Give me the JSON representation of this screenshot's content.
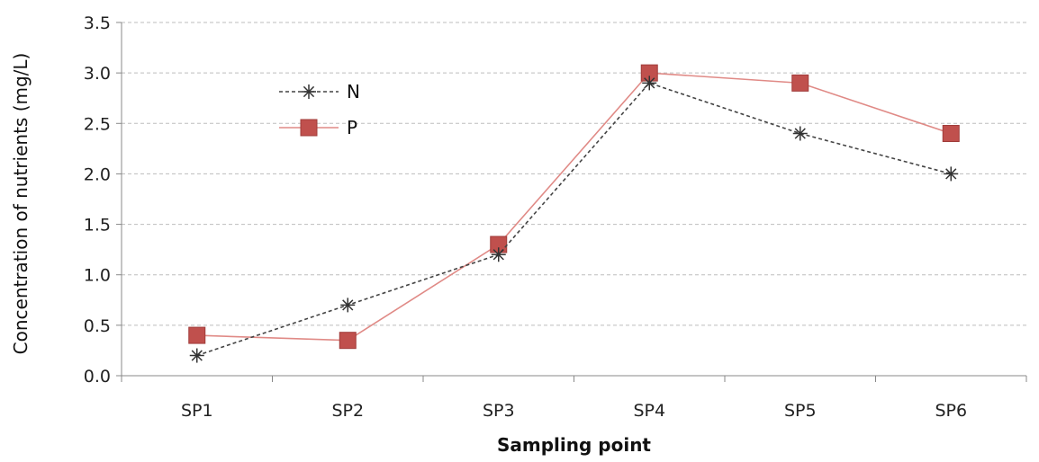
{
  "chart_data": {
    "type": "line",
    "title": "",
    "xlabel": "Sampling point",
    "ylabel": "Concentration of nutrients (mg/L)",
    "categories": [
      "SP1",
      "SP2",
      "SP3",
      "SP4",
      "SP5",
      "SP6"
    ],
    "ylim": [
      0,
      3.5
    ],
    "yticks": [
      "0.0",
      "0.5",
      "1.0",
      "1.5",
      "2.0",
      "2.5",
      "3.0",
      "3.5"
    ],
    "grid": true,
    "legend_position": "top-left",
    "series": [
      {
        "name": "N",
        "values": [
          0.2,
          0.7,
          1.2,
          2.9,
          2.4,
          2.0
        ],
        "color": "#333333",
        "line": "dashed",
        "marker": "asterisk"
      },
      {
        "name": "P",
        "values": [
          0.4,
          0.35,
          1.3,
          3.0,
          2.9,
          2.4
        ],
        "color": "#c0504d",
        "line": "solid",
        "marker": "square"
      }
    ]
  }
}
